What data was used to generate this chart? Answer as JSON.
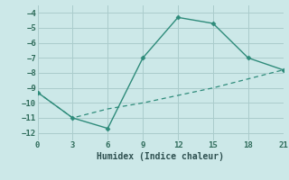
{
  "x": [
    0,
    3,
    6,
    9,
    12,
    15,
    18,
    21
  ],
  "y_solid": [
    -9.3,
    -11.0,
    -11.7,
    -7.0,
    -4.3,
    -4.7,
    -7.0,
    -7.8
  ],
  "y_dashed": [
    -9.3,
    -11.0,
    -10.4,
    -10.0,
    -9.5,
    -9.0,
    -8.4,
    -7.8
  ],
  "line_color": "#2e8b7a",
  "bg_color": "#cce8e8",
  "grid_color": "#aacccc",
  "xlabel": "Humidex (Indice chaleur)",
  "xlim": [
    0,
    21
  ],
  "ylim": [
    -12.5,
    -3.5
  ],
  "yticks": [
    -12,
    -11,
    -10,
    -9,
    -8,
    -7,
    -6,
    -5,
    -4
  ],
  "xticks": [
    0,
    3,
    6,
    9,
    12,
    15,
    18,
    21
  ],
  "tick_color": "#2e6b5a",
  "xlabel_color": "#2e5050"
}
